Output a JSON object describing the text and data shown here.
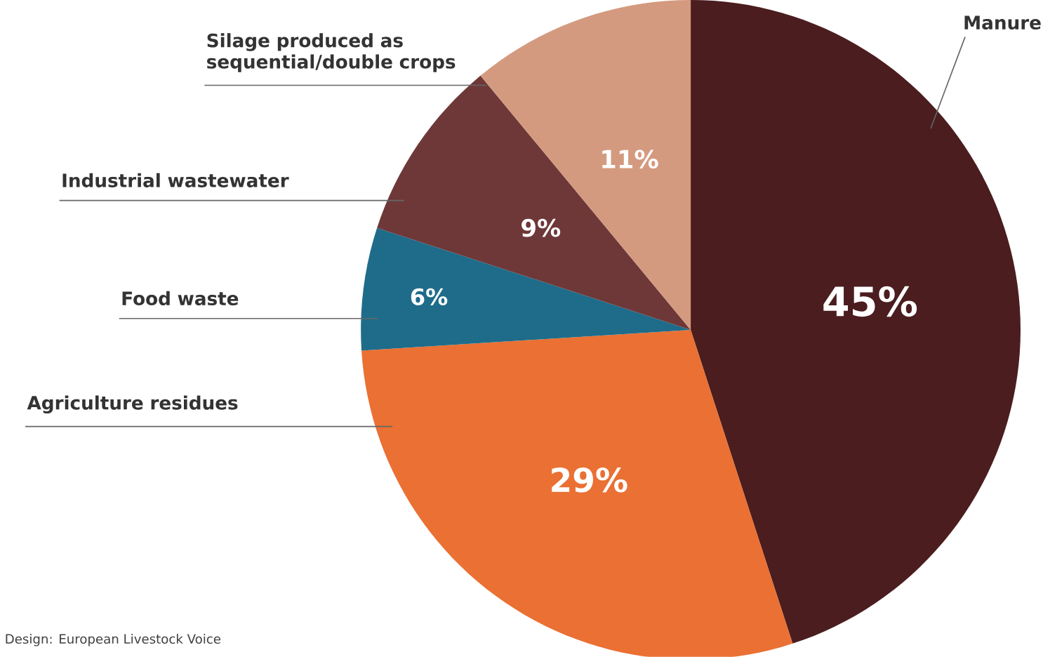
{
  "chart_data": {
    "type": "pie",
    "categories": [
      "Manure",
      "Agriculture residues",
      "Food waste",
      "Industrial wastewater",
      "Silage produced as sequential/double crops"
    ],
    "values": [
      45,
      29,
      6,
      9,
      11
    ],
    "colors": [
      "#4b1d1e",
      "#ea7033",
      "#1e6c8a",
      "#6e3838",
      "#d49a7f"
    ],
    "value_labels": [
      "45%",
      "29%",
      "6%",
      "9%",
      "11%"
    ],
    "annotations": [
      "Design: European Livestock Voice"
    ]
  }
}
